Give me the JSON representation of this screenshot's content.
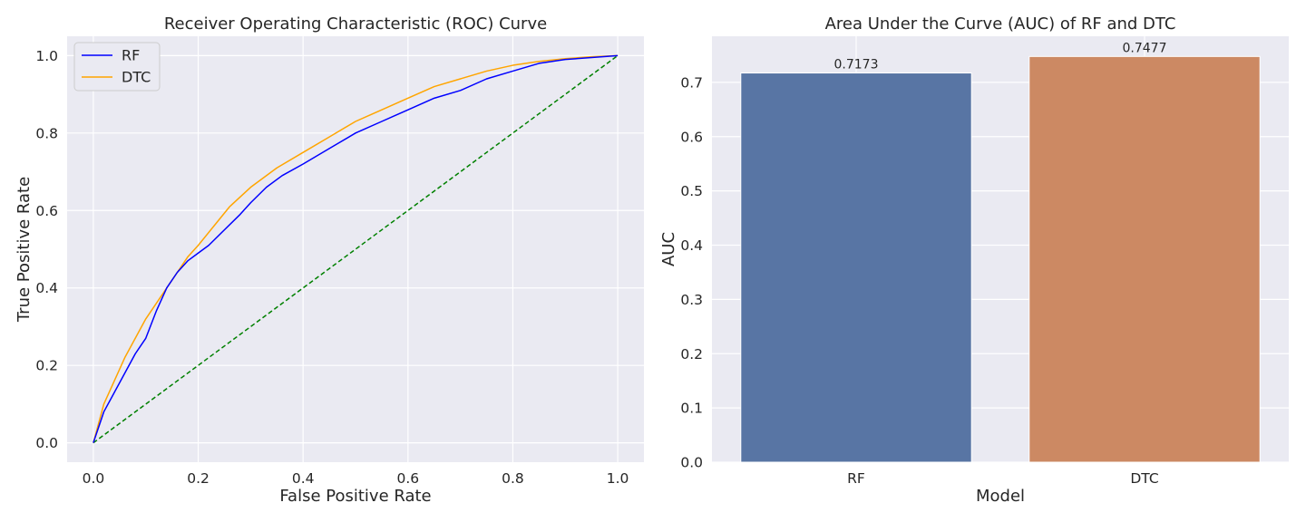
{
  "chart_data": [
    {
      "type": "line",
      "title": "Receiver Operating Characteristic (ROC) Curve",
      "xlabel": "False Positive Rate",
      "ylabel": "True Positive Rate",
      "xlim": [
        -0.05,
        1.05
      ],
      "ylim": [
        -0.05,
        1.05
      ],
      "xticks": [
        "0.0",
        "0.2",
        "0.4",
        "0.6",
        "0.8",
        "1.0"
      ],
      "yticks": [
        "0.0",
        "0.2",
        "0.4",
        "0.6",
        "0.8",
        "1.0"
      ],
      "grid": true,
      "legend": "top-left",
      "series": [
        {
          "name": "RF",
          "color": "#0000ff",
          "style": "solid",
          "x": [
            0.0,
            0.02,
            0.04,
            0.06,
            0.08,
            0.1,
            0.12,
            0.14,
            0.16,
            0.18,
            0.2,
            0.22,
            0.25,
            0.28,
            0.3,
            0.33,
            0.36,
            0.4,
            0.45,
            0.5,
            0.55,
            0.6,
            0.65,
            0.7,
            0.75,
            0.8,
            0.85,
            0.9,
            0.95,
            1.0
          ],
          "y": [
            0.0,
            0.08,
            0.13,
            0.18,
            0.23,
            0.27,
            0.34,
            0.4,
            0.44,
            0.47,
            0.49,
            0.51,
            0.55,
            0.59,
            0.62,
            0.66,
            0.69,
            0.72,
            0.76,
            0.8,
            0.83,
            0.86,
            0.89,
            0.91,
            0.94,
            0.96,
            0.98,
            0.99,
            0.995,
            1.0
          ]
        },
        {
          "name": "DTC",
          "color": "#ffa500",
          "style": "solid",
          "x": [
            0.0,
            0.02,
            0.04,
            0.06,
            0.08,
            0.1,
            0.12,
            0.15,
            0.18,
            0.2,
            0.23,
            0.26,
            0.3,
            0.35,
            0.4,
            0.45,
            0.5,
            0.55,
            0.6,
            0.65,
            0.7,
            0.75,
            0.8,
            0.85,
            0.9,
            0.95,
            1.0
          ],
          "y": [
            0.0,
            0.1,
            0.16,
            0.22,
            0.27,
            0.32,
            0.36,
            0.42,
            0.48,
            0.51,
            0.56,
            0.61,
            0.66,
            0.71,
            0.75,
            0.79,
            0.83,
            0.86,
            0.89,
            0.92,
            0.94,
            0.96,
            0.975,
            0.985,
            0.992,
            0.997,
            1.0
          ]
        },
        {
          "color": "#008000",
          "style": "dashed",
          "x": [
            0.0,
            1.0
          ],
          "y": [
            0.0,
            1.0
          ]
        }
      ]
    },
    {
      "type": "bar",
      "title": "Area Under the Curve (AUC) of RF and DTC",
      "xlabel": "Model",
      "ylabel": "AUC",
      "ylim": [
        0,
        0.785
      ],
      "yticks": [
        "0.0",
        "0.1",
        "0.2",
        "0.3",
        "0.4",
        "0.5",
        "0.6",
        "0.7"
      ],
      "categories": [
        "RF",
        "DTC"
      ],
      "values": [
        0.7173,
        0.7477
      ],
      "labels": [
        "0.7173",
        "0.7477"
      ],
      "colors": [
        "#5875a4",
        "#cc8963"
      ],
      "grid": true
    }
  ]
}
